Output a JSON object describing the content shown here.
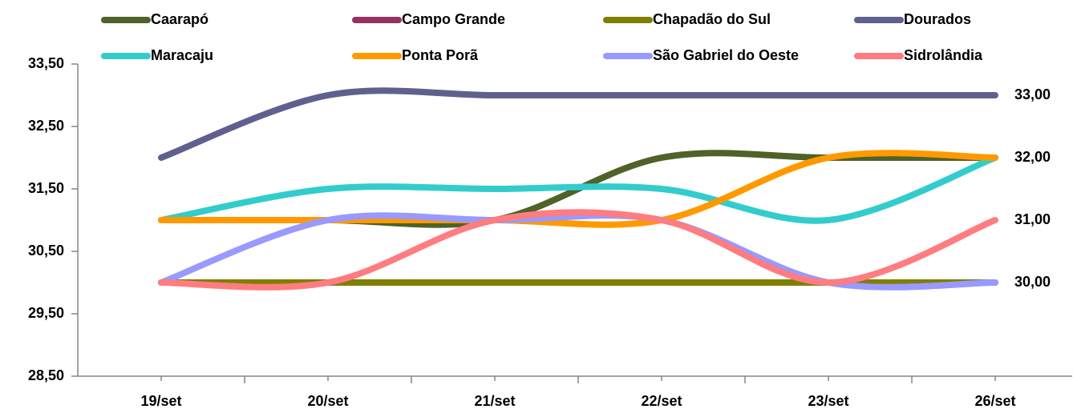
{
  "chart_data": {
    "type": "line",
    "categories": [
      "19/set",
      "20/set",
      "21/set",
      "22/set",
      "23/set",
      "26/set"
    ],
    "ylim": [
      28.5,
      33.5
    ],
    "yticks": [
      {
        "value": 28.5,
        "label": "28,50"
      },
      {
        "value": 29.5,
        "label": "29,50"
      },
      {
        "value": 30.5,
        "label": "30,50"
      },
      {
        "value": 31.5,
        "label": "31,50"
      },
      {
        "value": 32.5,
        "label": "32,50"
      },
      {
        "value": 33.5,
        "label": "33,50"
      }
    ],
    "smooth": true,
    "series": [
      {
        "name": "Caarapó",
        "color": "#4f6228",
        "values": [
          31,
          31,
          31,
          32,
          32,
          32
        ]
      },
      {
        "name": "Campo Grande",
        "color": "#953163",
        "values": [
          30,
          30,
          30,
          30,
          30,
          30
        ]
      },
      {
        "name": "Chapadão do Sul",
        "color": "#7f7f00",
        "values": [
          30,
          30,
          30,
          30,
          30,
          30
        ],
        "value_labels": [
          null,
          null,
          null,
          null,
          null,
          "30,00"
        ]
      },
      {
        "name": "Dourados",
        "color": "#60608f",
        "values": [
          32,
          33,
          33,
          33,
          33,
          33
        ],
        "value_labels": [
          null,
          null,
          null,
          null,
          null,
          "33,00"
        ]
      },
      {
        "name": "Maracaju",
        "color": "#33cccc",
        "values": [
          31,
          31.5,
          31.5,
          31.5,
          31,
          32
        ],
        "value_labels": [
          null,
          null,
          null,
          null,
          null,
          "32,00"
        ]
      },
      {
        "name": "Ponta Porã",
        "color": "#ff9900",
        "values": [
          31,
          31,
          31,
          31,
          32,
          32
        ]
      },
      {
        "name": "São Gabriel do Oeste",
        "color": "#9999ff",
        "values": [
          30,
          31,
          31,
          31,
          30,
          30
        ]
      },
      {
        "name": "Sidrolândia",
        "color": "#ff7c80",
        "values": [
          30,
          30,
          31,
          31,
          30,
          31
        ],
        "value_labels": [
          null,
          null,
          null,
          null,
          null,
          "31,00"
        ]
      }
    ]
  }
}
